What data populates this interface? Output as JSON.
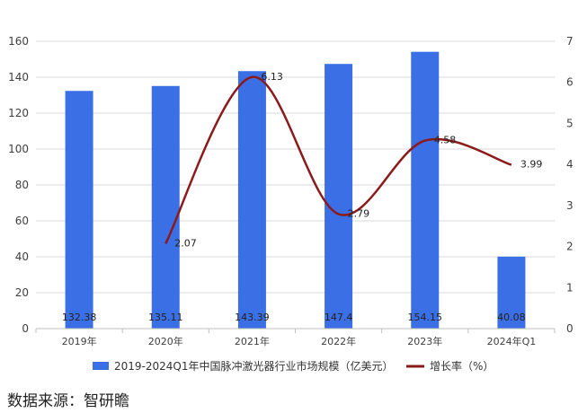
{
  "chart_data": {
    "type": "bar",
    "title": "",
    "categories": [
      "2019年",
      "2020年",
      "2021年",
      "2022年",
      "2023年",
      "2024年Q1"
    ],
    "series": [
      {
        "name": "2019-2024Q1年中国脉冲激光器行业市场规模（亿美元）",
        "type": "bar",
        "axis": "left",
        "color": "#3b6fe6",
        "values": [
          132.38,
          135.11,
          143.39,
          147.4,
          154.15,
          40.08
        ],
        "labels": [
          "132.38",
          "135.11",
          "143.39",
          "147.4",
          "154.15",
          "40.08"
        ]
      },
      {
        "name": "增长率（%）",
        "type": "line",
        "axis": "right",
        "color": "#8b1a1a",
        "values": [
          null,
          2.07,
          6.13,
          2.79,
          4.58,
          3.99
        ],
        "labels": [
          "",
          "2.07",
          "6.13",
          "2.79",
          "4.58",
          "3.99"
        ]
      }
    ],
    "y_left": {
      "ylim": [
        0,
        160
      ],
      "ticks": [
        "0",
        "20",
        "40",
        "60",
        "80",
        "100",
        "120",
        "140",
        "160"
      ]
    },
    "y_right": {
      "ylim": [
        0,
        7
      ],
      "ticks": [
        "0",
        "1",
        "2",
        "3",
        "4",
        "5",
        "6",
        "7"
      ]
    },
    "grid": true,
    "legend": "bottom"
  },
  "source": "数据来源：智研瞻"
}
